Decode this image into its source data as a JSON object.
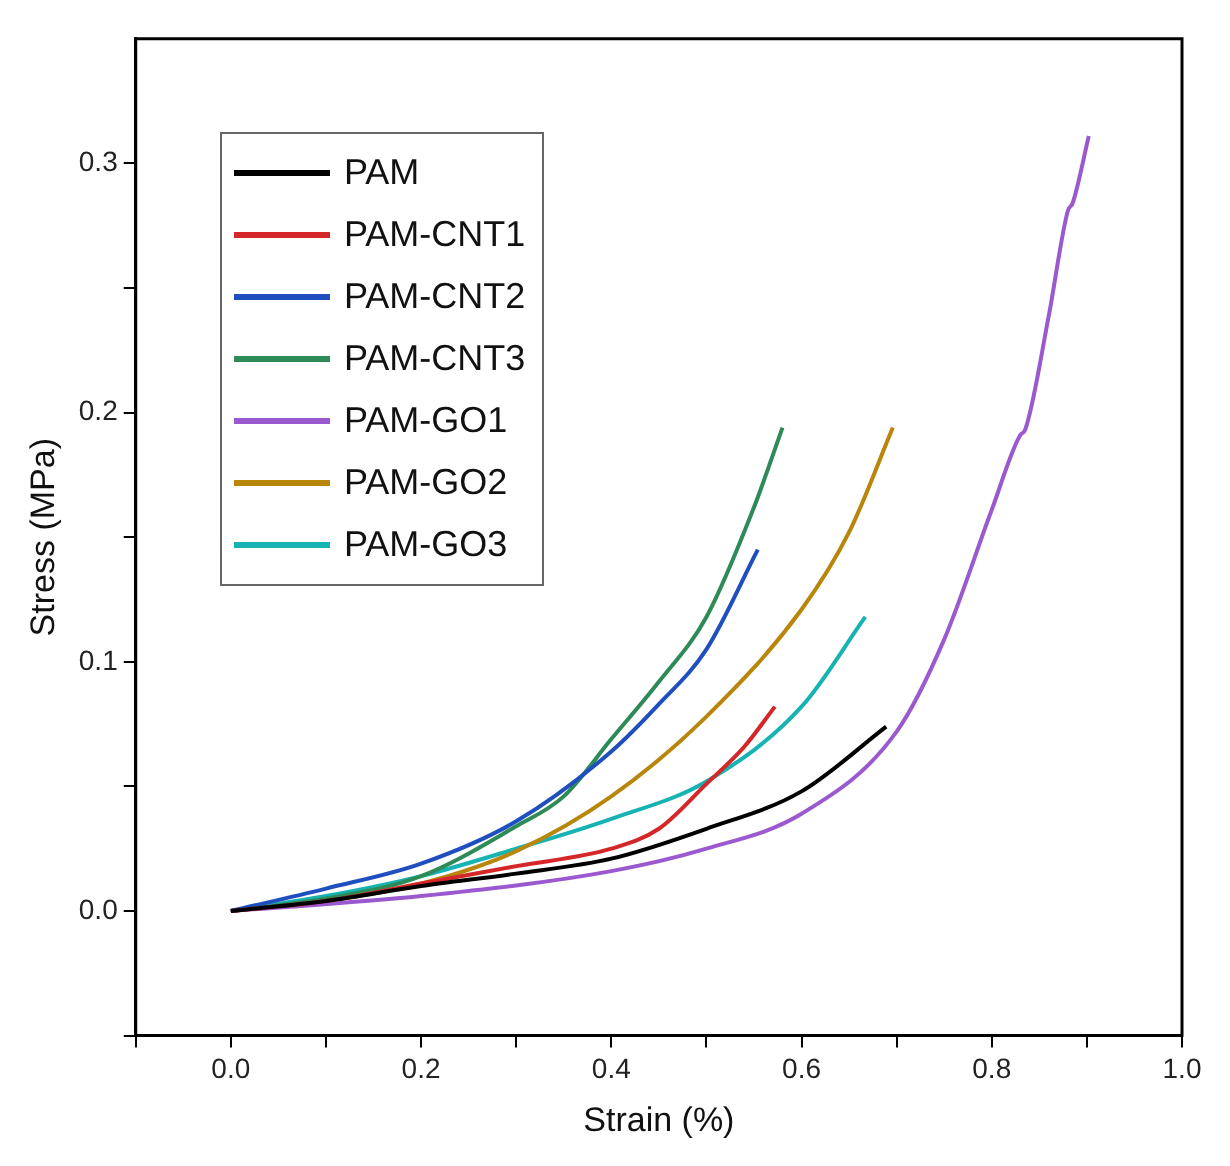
{
  "chart_data": {
    "type": "line",
    "xlabel": "Strain (%)",
    "ylabel": "Stress (MPa)",
    "xlim": [
      -0.1,
      1.0
    ],
    "ylim": [
      -0.05,
      0.35
    ],
    "xticks": [
      {
        "value": -0.1,
        "label": null
      },
      {
        "value": 0.0,
        "label": "0.0"
      },
      {
        "value": 0.1,
        "label": null
      },
      {
        "value": 0.2,
        "label": "0.2"
      },
      {
        "value": 0.3,
        "label": null
      },
      {
        "value": 0.4,
        "label": "0.4"
      },
      {
        "value": 0.5,
        "label": null
      },
      {
        "value": 0.6,
        "label": "0.6"
      },
      {
        "value": 0.7,
        "label": null
      },
      {
        "value": 0.8,
        "label": "0.8"
      },
      {
        "value": 0.9,
        "label": null
      },
      {
        "value": 1.0,
        "label": "1.0"
      }
    ],
    "yticks": [
      {
        "value": -0.05,
        "label": null
      },
      {
        "value": 0.0,
        "label": "0.0"
      },
      {
        "value": 0.05,
        "label": null
      },
      {
        "value": 0.1,
        "label": "0.1"
      },
      {
        "value": 0.15,
        "label": null
      },
      {
        "value": 0.2,
        "label": "0.2"
      },
      {
        "value": 0.25,
        "label": null
      },
      {
        "value": 0.3,
        "label": "0.3"
      }
    ],
    "grid": false,
    "legend": "top left",
    "marker": "none",
    "line_style": "solid",
    "series": [
      {
        "name": "PAM",
        "color": "#000000",
        "x": [
          0,
          0.1,
          0.2,
          0.3,
          0.4,
          0.5,
          0.6,
          0.689
        ],
        "values": [
          0,
          0.004,
          0.01,
          0.015,
          0.021,
          0.033,
          0.048,
          0.074
        ]
      },
      {
        "name": "PAM-CNT1",
        "color": "#d62728",
        "x": [
          0,
          0.1,
          0.2,
          0.3,
          0.4,
          0.45,
          0.5,
          0.54,
          0.572
        ],
        "values": [
          0,
          0.004,
          0.011,
          0.018,
          0.025,
          0.033,
          0.051,
          0.066,
          0.082
        ]
      },
      {
        "name": "PAM-CNT2",
        "color": "#1f4fbf",
        "x": [
          0,
          0.1,
          0.2,
          0.3,
          0.4,
          0.45,
          0.5,
          0.554
        ],
        "values": [
          0,
          0.009,
          0.019,
          0.036,
          0.064,
          0.083,
          0.105,
          0.145
        ]
      },
      {
        "name": "PAM-CNT3",
        "color": "#2e8b57",
        "x": [
          0,
          0.1,
          0.2,
          0.3,
          0.35,
          0.4,
          0.45,
          0.5,
          0.55,
          0.58
        ],
        "values": [
          0,
          0.005,
          0.014,
          0.034,
          0.046,
          0.069,
          0.092,
          0.118,
          0.162,
          0.194
        ]
      },
      {
        "name": "PAM-GO1",
        "color": "#9b59d0",
        "x": [
          0,
          0.2,
          0.4,
          0.5,
          0.6,
          0.7,
          0.75,
          0.8,
          0.83,
          0.835,
          0.86,
          0.88,
          0.885,
          0.902
        ],
        "values": [
          0,
          0.006,
          0.016,
          0.025,
          0.039,
          0.072,
          0.109,
          0.161,
          0.191,
          0.193,
          0.239,
          0.281,
          0.284,
          0.311
        ]
      },
      {
        "name": "PAM-GO2",
        "color": "#b8860b",
        "x": [
          0,
          0.1,
          0.2,
          0.3,
          0.4,
          0.5,
          0.6,
          0.65,
          0.696
        ],
        "values": [
          0,
          0.004,
          0.011,
          0.024,
          0.046,
          0.078,
          0.121,
          0.152,
          0.194
        ]
      },
      {
        "name": "PAM-GO3",
        "color": "#17b3b3",
        "x": [
          0,
          0.1,
          0.2,
          0.3,
          0.4,
          0.5,
          0.6,
          0.667
        ],
        "values": [
          0,
          0.006,
          0.014,
          0.025,
          0.037,
          0.052,
          0.082,
          0.118
        ]
      }
    ]
  }
}
